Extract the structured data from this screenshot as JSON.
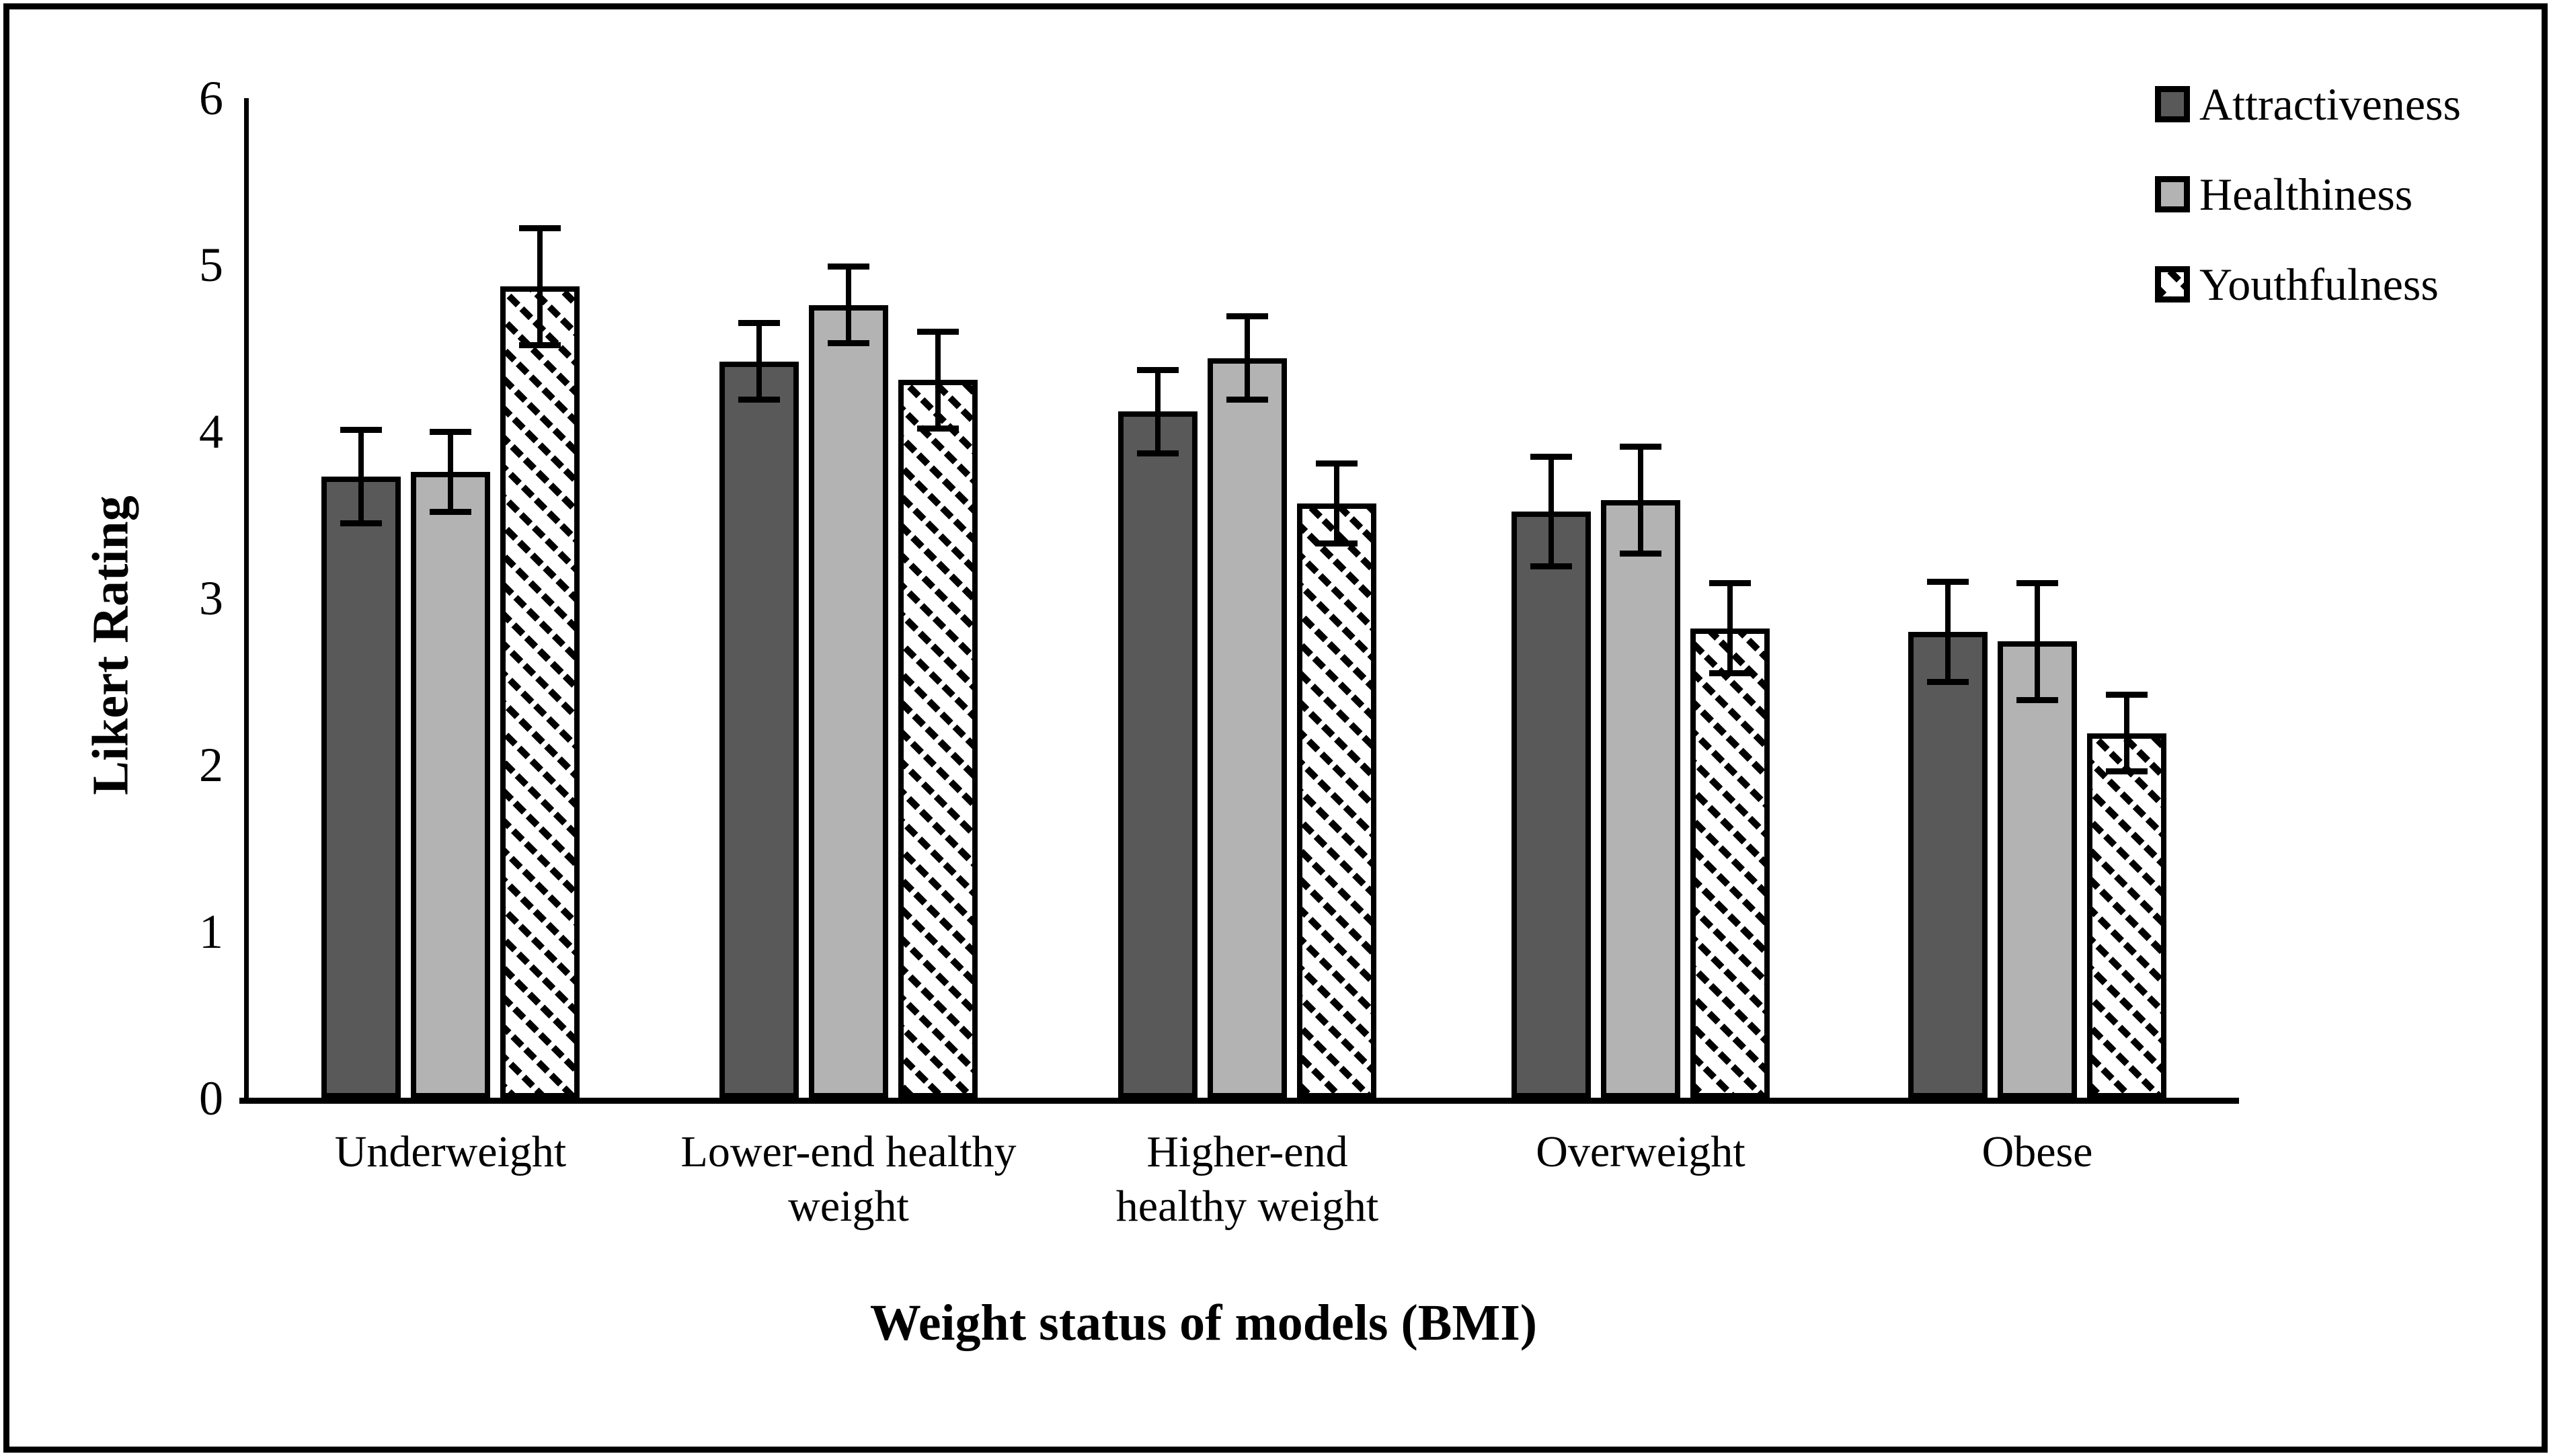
{
  "figure": {
    "background": "#ffffff",
    "border_color": "#000000",
    "text_color": "#000000"
  },
  "chart_data": {
    "type": "bar",
    "title": "",
    "xlabel": "Weight status of models (BMI)",
    "ylabel": "Likert Rating",
    "ylim": [
      0,
      6
    ],
    "yticks": [
      0,
      1,
      2,
      3,
      4,
      5,
      6
    ],
    "grid": false,
    "legend_position": "top-right",
    "error_bars": true,
    "categories": [
      "Underweight",
      "Lower-end healthy\nweight",
      "Higher-end\nhealthy weight",
      "Overweight",
      "Obese"
    ],
    "series": [
      {
        "name": "Attractiveness",
        "color": "#595959",
        "pattern": "solid",
        "values": [
          3.73,
          4.42,
          4.12,
          3.52,
          2.8
        ],
        "errors": [
          0.28,
          0.23,
          0.25,
          0.33,
          0.3
        ]
      },
      {
        "name": "Healthiness",
        "color": "#b3b3b3",
        "pattern": "solid",
        "values": [
          3.76,
          4.76,
          4.44,
          3.59,
          2.74
        ],
        "errors": [
          0.24,
          0.23,
          0.25,
          0.32,
          0.35
        ]
      },
      {
        "name": "Youthfulness",
        "color": "#ffffff",
        "pattern": "diagonal-hatch",
        "values": [
          4.87,
          4.31,
          3.57,
          2.82,
          2.19
        ],
        "errors": [
          0.35,
          0.29,
          0.24,
          0.27,
          0.23
        ]
      }
    ]
  }
}
